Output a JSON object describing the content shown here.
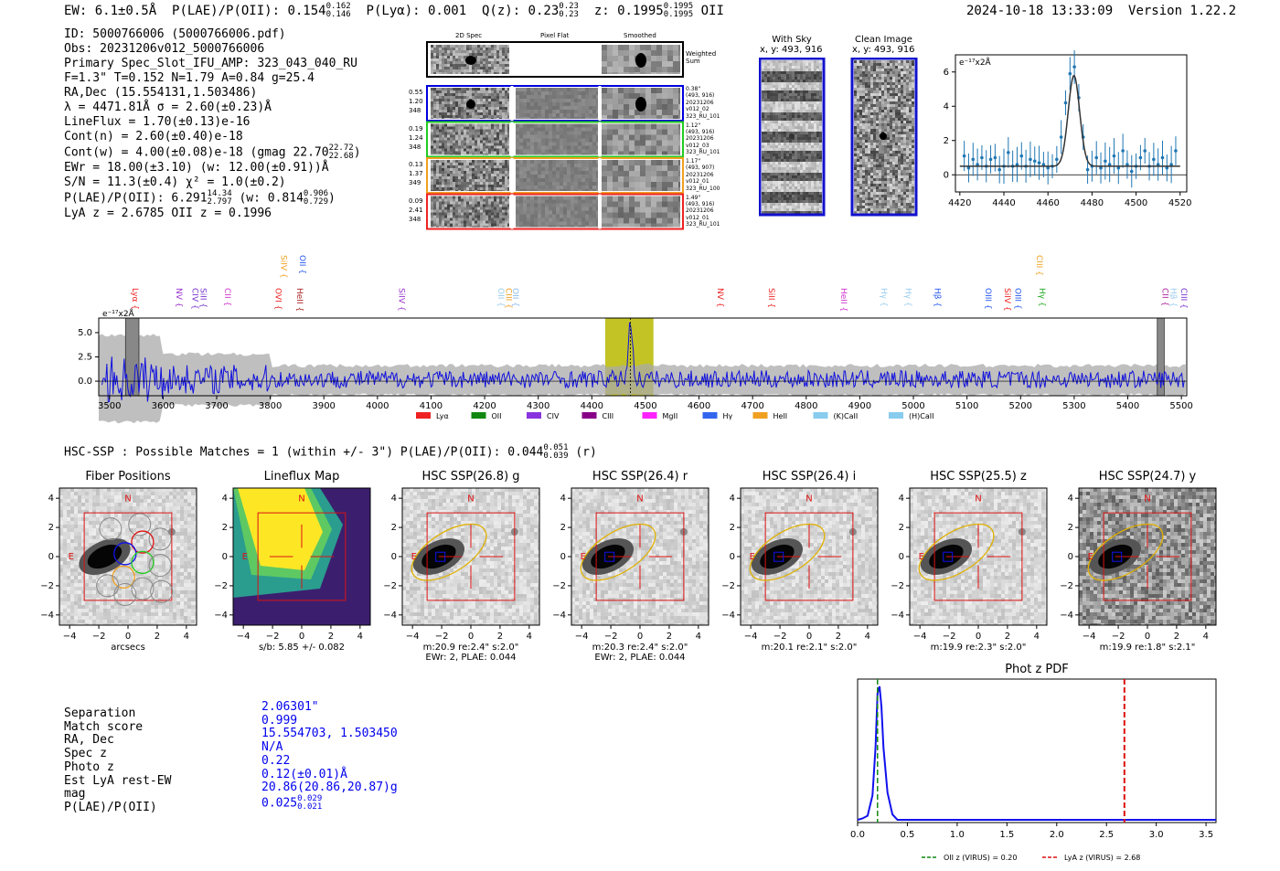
{
  "header": {
    "ew": "EW: 6.1±0.5Å",
    "plae_label": "P(LAE)/P(OII): 0.154",
    "plae_hi": "0.162",
    "plae_lo": "0.146",
    "plya": "P(Lyα): 0.001",
    "qz_label": "Q(z): 0.23",
    "qz_hi": "0.23",
    "qz_lo": "0.23",
    "z_label": "z: 0.1995",
    "z_hi": "0.1995",
    "z_lo": "0.1995",
    "z_line": "OII",
    "timestamp": "2024-10-18 13:33:09",
    "version": "Version 1.22.2"
  },
  "info": {
    "id": "ID: 5000766006 (5000766006.pdf)",
    "obs": "Obs: 20231206v012_5000766006",
    "primary": "Primary Spec_Slot_IFU_AMP: 323_043_040_RU",
    "fparams": "F=1.3\"  T=0.152  N=1.79  A=0.84  g=25.4",
    "radec": "RA,Dec (15.554131,1.503486)",
    "lambda": "λ = 4471.81Å   σ = 2.60(±0.23)Å",
    "lineflux": "LineFlux = 1.70(±0.13)e-16",
    "contn": "Cont(n) = 2.60(±0.40)e-18",
    "contw": "Cont(w) = 4.00(±0.08)e-18 (gmag 22.70",
    "contw_hi": "22.72",
    "contw_lo": "22.68",
    "contw_end": ")",
    "ewr": "EWr = 18.00(±3.10) (w: 12.00(±0.91))Å",
    "sn": "S/N = 11.3(±0.4)  χ² = 1.0(±0.2)",
    "plae": "P(LAE)/P(OII): 6.291",
    "plae_hi": "14.34",
    "plae_lo": "2.797",
    "plae_w": "(w: 0.814",
    "plae_w_hi": "0.906",
    "plae_w_lo": "0.729",
    "plae_w_end": ")",
    "lyaz": "LyA z = 2.6785   OII z = 0.1996"
  },
  "cutouts": {
    "col_2d": "2D Spec",
    "col_flat": "Pixel Flat",
    "col_smooth": "Smoothed",
    "weighted": "Weighted Sum",
    "rows": [
      {
        "nums": [
          "0.55",
          "1.20",
          "348"
        ],
        "color": "#0000dd",
        "meta": [
          "0.38\"",
          "(493, 916)",
          "20231206",
          "v012_02",
          "323_RU_101"
        ]
      },
      {
        "nums": [
          "0.19",
          "1.24",
          "348"
        ],
        "color": "#22cc22",
        "meta": [
          "1.12\"",
          "(493, 916)",
          "20231206",
          "v012_03",
          "323_RU_101"
        ]
      },
      {
        "nums": [
          "0.13",
          "1.37",
          "349"
        ],
        "color": "#f0a020",
        "meta": [
          "1.17\"",
          "(493, 907)",
          "20231206",
          "v012_01",
          "323_RU_100"
        ]
      },
      {
        "nums": [
          "0.09",
          "2.41",
          "348"
        ],
        "color": "#ee2222",
        "meta": [
          "1.49\"",
          "(493, 916)",
          "20231206",
          "v012_01",
          "323_RU_101"
        ]
      }
    ]
  },
  "sky": {
    "with_sky": "With Sky",
    "with_sky_xy": "x, y: 493, 916",
    "clean": "Clean Image",
    "clean_xy": "x, y: 493, 916"
  },
  "fit_plot": {
    "unit": "e⁻¹⁷x2Å",
    "xticks": [
      "4420",
      "4440",
      "4460",
      "4480",
      "4500",
      "4520"
    ],
    "yticks": [
      "0",
      "2",
      "4",
      "6"
    ]
  },
  "spectrum": {
    "unit": "e⁻¹⁷x2Å",
    "xticks": [
      "3500",
      "3600",
      "3700",
      "3800",
      "3900",
      "4000",
      "4100",
      "4200",
      "4300",
      "4400",
      "4500",
      "4600",
      "4700",
      "4800",
      "4900",
      "5000",
      "5100",
      "5200",
      "5300",
      "5400",
      "5500"
    ],
    "yticks": [
      "5.0",
      "2.5",
      "0.0"
    ],
    "lines": [
      {
        "label": "Lyα",
        "wl": 3538,
        "color": "#ee2222",
        "row": 0
      },
      {
        "label": "NV",
        "wl": 3620,
        "color": "#9933cc",
        "row": 0
      },
      {
        "label": "CIV",
        "wl": 3650,
        "color": "#7733cc",
        "row": 0
      },
      {
        "label": "SiII",
        "wl": 3665,
        "color": "#7733cc",
        "row": 0
      },
      {
        "label": "CII",
        "wl": 3710,
        "color": "#cc33cc",
        "row": 0
      },
      {
        "label": "OVI",
        "wl": 3805,
        "color": "#ee2222",
        "row": 0
      },
      {
        "label": "SiIV",
        "wl": 3815,
        "color": "#f0a020",
        "row": 1
      },
      {
        "label": "OII",
        "wl": 3850,
        "color": "#2255ee",
        "row": 1
      },
      {
        "label": "HeII",
        "wl": 3845,
        "color": "#aa2222",
        "row": 0
      },
      {
        "label": "SiIV",
        "wl": 4035,
        "color": "#9933cc",
        "row": 0
      },
      {
        "label": "OII",
        "wl": 4220,
        "color": "#99ccee",
        "row": 0
      },
      {
        "label": "CIII",
        "wl": 4235,
        "color": "#f0a020",
        "row": 0
      },
      {
        "label": "OII",
        "wl": 4248,
        "color": "#88bbee",
        "row": 0
      },
      {
        "label": "NV",
        "wl": 4630,
        "color": "#ee2222",
        "row": 0
      },
      {
        "label": "SiII",
        "wl": 4725,
        "color": "#ee2222",
        "row": 0
      },
      {
        "label": "HeII",
        "wl": 4860,
        "color": "#cc33cc",
        "row": 0
      },
      {
        "label": "Hγ",
        "wl": 4935,
        "color": "#99ccee",
        "row": 0
      },
      {
        "label": "Hγ",
        "wl": 4980,
        "color": "#99ccee",
        "row": 0
      },
      {
        "label": "Hβ",
        "wl": 5035,
        "color": "#2255ee",
        "row": 0
      },
      {
        "label": "OIII",
        "wl": 5130,
        "color": "#2255ee",
        "row": 0
      },
      {
        "label": "SiIV",
        "wl": 5165,
        "color": "#ee2222",
        "row": 0
      },
      {
        "label": "OIII",
        "wl": 5185,
        "color": "#2255ee",
        "row": 0
      },
      {
        "label": "CIII",
        "wl": 5225,
        "color": "#f0a020",
        "row": 1
      },
      {
        "label": "Hγ",
        "wl": 5230,
        "color": "#22aa22",
        "row": 0
      },
      {
        "label": "CII",
        "wl": 5460,
        "color": "#aa2299",
        "row": 0
      },
      {
        "label": "Hβ",
        "wl": 5475,
        "color": "#99ccee",
        "row": 0
      },
      {
        "label": "CIII",
        "wl": 5495,
        "color": "#7733cc",
        "row": 0
      }
    ],
    "legend": [
      {
        "label": "Lyα",
        "color": "#ee2222"
      },
      {
        "label": "OII",
        "color": "#118811"
      },
      {
        "label": "CIV",
        "color": "#8833dd"
      },
      {
        "label": "CIII",
        "color": "#880088"
      },
      {
        "label": "MgII",
        "color": "#ff22ff"
      },
      {
        "label": "Hγ",
        "color": "#3366ee"
      },
      {
        "label": "HeII",
        "color": "#f0a020"
      },
      {
        "label": "(K)CaII",
        "color": "#88ccee"
      },
      {
        "label": "(H)CaII",
        "color": "#88ccee"
      }
    ]
  },
  "hsc": {
    "title": "HSC-SSP : Possible Matches = 1 (within +/- 3\")  P(LAE)/P(OII): 0.044",
    "title_hi": "0.051",
    "title_lo": "0.039",
    "title_end": "(r)",
    "axticks": [
      "−4",
      "−2",
      "0",
      "2",
      "4"
    ],
    "panels": [
      {
        "title": "Fiber Positions",
        "cap1": "arcsecs",
        "cap2": ""
      },
      {
        "title": "Lineflux Map",
        "cap1": "s/b: 5.85 +/- 0.082",
        "cap2": ""
      },
      {
        "title": "HSC SSP(26.8) g",
        "cap1": "m:20.9  re:2.4\"  s:2.0\"",
        "cap2": "EWr: 2, PLAE: 0.044"
      },
      {
        "title": "HSC SSP(26.4) r",
        "cap1": "m:20.3  re:2.4\"  s:2.0\"",
        "cap2": "EWr: 2, PLAE: 0.044"
      },
      {
        "title": "HSC SSP(26.4) i",
        "cap1": "m:20.1  re:2.1\"  s:2.0\"",
        "cap2": ""
      },
      {
        "title": "HSC SSP(25.5) z",
        "cap1": "m:19.9  re:2.3\"  s:2.0\"",
        "cap2": ""
      },
      {
        "title": "HSC SSP(24.7) y",
        "cap1": "m:19.9  re:1.8\"  s:2.1\"",
        "cap2": ""
      }
    ],
    "north": "N",
    "east": "E"
  },
  "match": {
    "labels": [
      "Separation",
      "Match score",
      "RA, Dec",
      "Spec z",
      "Photo z",
      "Est LyA rest-EW",
      "mag",
      "P(LAE)/P(OII)"
    ],
    "values": [
      "2.06301\"",
      "0.999",
      "15.554703, 1.503450",
      "N/A",
      "0.22",
      "0.12(±0.01)Å",
      "20.86(20.86,20.87)g",
      "0.025"
    ],
    "plae_hi": "0.029",
    "plae_lo": "0.021"
  },
  "chart_data": [
    {
      "type": "line",
      "title": "",
      "xlabel": "",
      "ylabel": "e-17x2Å",
      "xlim": [
        4418,
        4523
      ],
      "ylim": [
        -1,
        7
      ],
      "series": [
        {
          "name": "data",
          "x": [
            4422,
            4424,
            4426,
            4428,
            4430,
            4432,
            4434,
            4436,
            4438,
            4440,
            4442,
            4444,
            4446,
            4448,
            4450,
            4452,
            4454,
            4456,
            4458,
            4460,
            4462,
            4464,
            4466,
            4468,
            4470,
            4472,
            4474,
            4476,
            4478,
            4480,
            4482,
            4484,
            4486,
            4488,
            4490,
            4492,
            4494,
            4496,
            4498,
            4500,
            4502,
            4504,
            4506,
            4508,
            4510,
            4512,
            4514,
            4516,
            4518
          ],
          "y": [
            1.1,
            0.4,
            0.9,
            0.6,
            1.0,
            0.5,
            0.9,
            1.0,
            0.3,
            0.5,
            1.3,
            0.5,
            0.6,
            1.1,
            0.5,
            0.9,
            0.8,
            0.7,
            0.6,
            0.4,
            0.5,
            0.9,
            2.2,
            4.2,
            5.9,
            6.3,
            4.5,
            2.2,
            0.3,
            0.5,
            1.0,
            0.4,
            0.8,
            0.6,
            1.1,
            0.4,
            1.4,
            0.6,
            0.2,
            0.5,
            1.0,
            1.4,
            0.5,
            0.9,
            0.6,
            1.0,
            0.4,
            0.6,
            1.4
          ]
        },
        {
          "name": "fit",
          "x": [
            4420,
            4520
          ],
          "baseline": 0.5,
          "center": 4471.8,
          "sigma": 2.6,
          "amp": 5.3
        }
      ]
    },
    {
      "type": "line",
      "ylabel": "e-17x2Å",
      "xlim": [
        3480,
        5510
      ],
      "ylim": [
        -1.5,
        6.5
      ],
      "highlight": [
        4425,
        4515
      ],
      "masks": [
        [
          3530,
          3555
        ],
        [
          5455,
          5468
        ]
      ],
      "series": [
        {
          "name": "flux",
          "noise": 1.2,
          "peak_center": 4471.8,
          "peak_amp": 6.0
        }
      ]
    },
    {
      "type": "line",
      "title": "Phot z PDF",
      "xlim": [
        0,
        3.6
      ],
      "xticks": [
        "0.0",
        "0.5",
        "1.0",
        "1.5",
        "2.0",
        "2.5",
        "3.0",
        "3.5"
      ],
      "series": [
        {
          "name": "pdf",
          "x": [
            0.0,
            0.05,
            0.1,
            0.15,
            0.18,
            0.2,
            0.22,
            0.24,
            0.26,
            0.3,
            0.35,
            0.4,
            0.6,
            1.0,
            2.0,
            3.6
          ],
          "y": [
            0.02,
            0.03,
            0.05,
            0.2,
            0.55,
            0.95,
            1.0,
            0.85,
            0.55,
            0.22,
            0.06,
            0.02,
            0.02,
            0.02,
            0.02,
            0.02
          ]
        }
      ],
      "vlines": [
        {
          "label": "OII z (VIRUS) = 0.20",
          "x": 0.2,
          "color": "#118811"
        },
        {
          "label": "LyA z (VIRUS) = 2.68",
          "x": 2.68,
          "color": "#dd1111"
        }
      ]
    }
  ]
}
